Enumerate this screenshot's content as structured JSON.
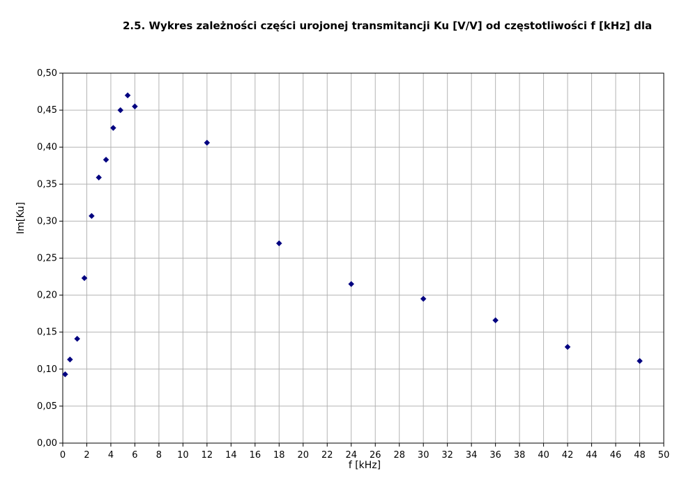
{
  "chart_data": {
    "type": "scatter",
    "title": "2.5. Wykres zależności części urojonej transmitancji Ku [V/V] od częstotliwości f [kHz] dla",
    "xlabel": "f [kHz]",
    "ylabel": "Im[Ku]",
    "xlim": [
      0,
      50
    ],
    "ylim": [
      0,
      0.5
    ],
    "xticks": [
      "0",
      "2",
      "4",
      "6",
      "8",
      "10",
      "12",
      "14",
      "16",
      "18",
      "20",
      "22",
      "24",
      "26",
      "28",
      "30",
      "32",
      "34",
      "36",
      "38",
      "40",
      "42",
      "44",
      "46",
      "48",
      "50"
    ],
    "yticks": [
      "0,00",
      "0,05",
      "0,10",
      "0,15",
      "0,20",
      "0,25",
      "0,30",
      "0,35",
      "0,40",
      "0,45",
      "0,50"
    ],
    "grid": true,
    "legend": "none",
    "colors": {
      "marker": "#000080",
      "grid": "#b3b3b3",
      "axis": "#000000",
      "background": "#ffffff"
    },
    "points": [
      {
        "x": 0.2,
        "y": 0.093
      },
      {
        "x": 0.6,
        "y": 0.113
      },
      {
        "x": 1.2,
        "y": 0.141
      },
      {
        "x": 1.8,
        "y": 0.223
      },
      {
        "x": 2.4,
        "y": 0.307
      },
      {
        "x": 3.0,
        "y": 0.359
      },
      {
        "x": 3.6,
        "y": 0.383
      },
      {
        "x": 4.2,
        "y": 0.426
      },
      {
        "x": 4.8,
        "y": 0.45
      },
      {
        "x": 5.4,
        "y": 0.47
      },
      {
        "x": 6.0,
        "y": 0.455
      },
      {
        "x": 12.0,
        "y": 0.406
      },
      {
        "x": 18.0,
        "y": 0.27
      },
      {
        "x": 24.0,
        "y": 0.215
      },
      {
        "x": 30.0,
        "y": 0.195
      },
      {
        "x": 36.0,
        "y": 0.166
      },
      {
        "x": 42.0,
        "y": 0.13
      },
      {
        "x": 48.0,
        "y": 0.111
      }
    ]
  }
}
